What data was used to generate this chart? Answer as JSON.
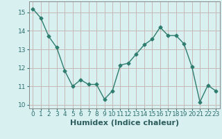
{
  "x": [
    0,
    1,
    2,
    3,
    4,
    5,
    6,
    7,
    8,
    9,
    10,
    11,
    12,
    13,
    14,
    15,
    16,
    17,
    18,
    19,
    20,
    21,
    22,
    23
  ],
  "y": [
    15.2,
    14.7,
    13.7,
    13.1,
    11.85,
    11.0,
    11.35,
    11.1,
    11.1,
    10.3,
    10.75,
    12.15,
    12.25,
    12.75,
    13.25,
    13.55,
    14.2,
    13.75,
    13.75,
    13.3,
    12.05,
    10.15,
    11.05,
    10.75
  ],
  "line_color": "#2e7d6e",
  "marker": "D",
  "marker_size": 2.5,
  "bg_color": "#d8f0f0",
  "grid_color": "#c8b8b8",
  "xlabel": "Humidex (Indice chaleur)",
  "ylim": [
    9.8,
    15.6
  ],
  "xlim": [
    -0.5,
    23.5
  ],
  "yticks": [
    10,
    11,
    12,
    13,
    14,
    15
  ],
  "xticks": [
    0,
    1,
    2,
    3,
    4,
    5,
    6,
    7,
    8,
    9,
    10,
    11,
    12,
    13,
    14,
    15,
    16,
    17,
    18,
    19,
    20,
    21,
    22,
    23
  ],
  "tick_fontsize": 6.5,
  "xlabel_fontsize": 8,
  "tick_color": "#2e6e6e",
  "label_color": "#2e5e5e"
}
